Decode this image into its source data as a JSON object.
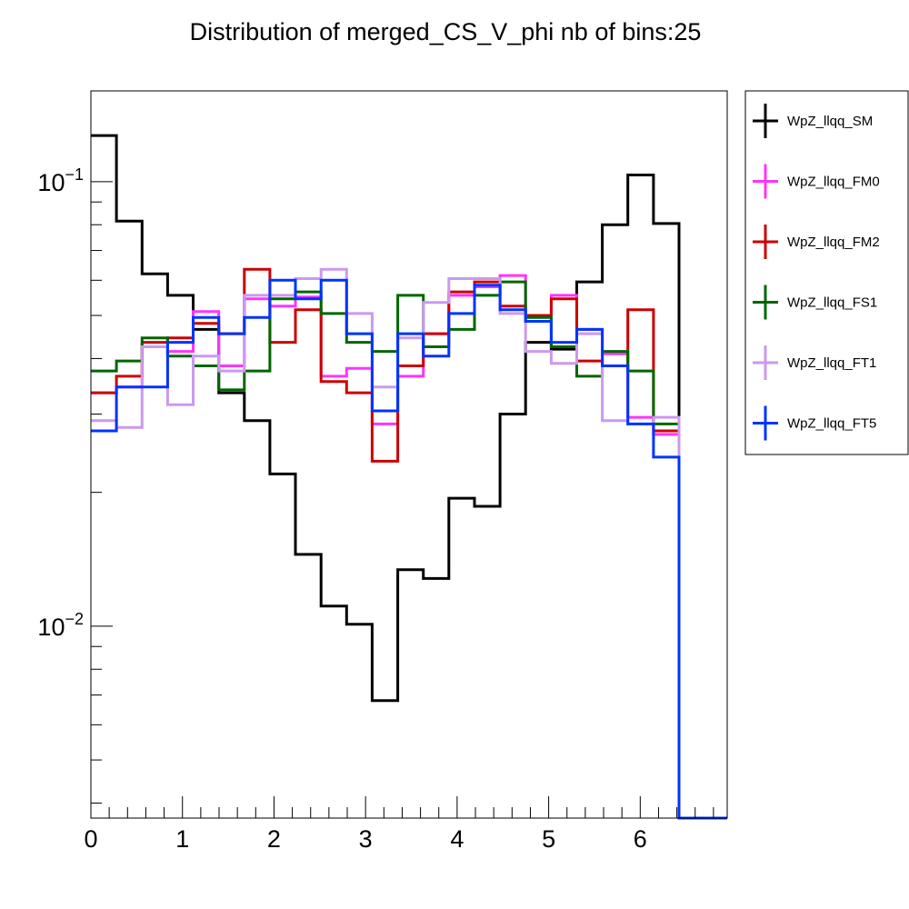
{
  "chart_data": {
    "type": "line",
    "title": "Distribution of merged_CS_V_phi nb of bins:25",
    "xlabel": "",
    "ylabel": "",
    "xlim": [
      0,
      6.95
    ],
    "ylim": [
      0.0037,
      0.16
    ],
    "yscale": "log",
    "grid": false,
    "legend_position": "right",
    "bin_edges": [
      0,
      0.2793,
      0.5586,
      0.8379,
      1.1172,
      1.3965,
      1.6758,
      1.9551,
      2.2344,
      2.5137,
      2.793,
      3.0723,
      3.3516,
      3.6309,
      3.9102,
      4.1895,
      4.4688,
      4.7481,
      5.0274,
      5.3067,
      5.586,
      5.8653,
      6.1446,
      6.4239,
      6.7032,
      6.95
    ],
    "x_ticks": [
      {
        "value": 0,
        "label": "0"
      },
      {
        "value": 1,
        "label": "1"
      },
      {
        "value": 2,
        "label": "2"
      },
      {
        "value": 3,
        "label": "3"
      },
      {
        "value": 4,
        "label": "4"
      },
      {
        "value": 5,
        "label": "5"
      },
      {
        "value": 6,
        "label": "6"
      }
    ],
    "y_ticks": [
      {
        "value": 0.1,
        "base": "10",
        "exponent": "−1"
      },
      {
        "value": 0.01,
        "base": "10",
        "exponent": "−2"
      }
    ],
    "series": [
      {
        "name": "WpZ_llqq_SM",
        "color": "#000000",
        "values": [
          0.127,
          0.0815,
          0.062,
          0.0555,
          0.0465,
          0.0335,
          0.029,
          0.022,
          0.0145,
          0.0111,
          0.0101,
          0.0068,
          0.0134,
          0.0128,
          0.0194,
          0.0186,
          0.03,
          0.0435,
          0.042,
          0.0595,
          0.08,
          0.1035,
          0.0805,
          0.0037,
          0.0037
        ]
      },
      {
        "name": "WpZ_llqq_FM0",
        "color": "#ff33ff",
        "values": [
          0.0335,
          0.0345,
          0.0425,
          0.0415,
          0.051,
          0.0385,
          0.0545,
          0.0525,
          0.055,
          0.0365,
          0.038,
          0.0285,
          0.0365,
          0.0455,
          0.0555,
          0.058,
          0.0615,
          0.0485,
          0.0555,
          0.0465,
          0.041,
          0.0295,
          0.027,
          0.0037,
          0.0037
        ]
      },
      {
        "name": "WpZ_llqq_FM2",
        "color": "#cc0000",
        "values": [
          0.0335,
          0.0365,
          0.0435,
          0.0445,
          0.048,
          0.0455,
          0.0635,
          0.0435,
          0.0515,
          0.0355,
          0.0335,
          0.0235,
          0.0385,
          0.0455,
          0.0565,
          0.0595,
          0.0525,
          0.05,
          0.0545,
          0.0395,
          0.0385,
          0.0515,
          0.0275,
          0.0037,
          0.0037
        ]
      },
      {
        "name": "WpZ_llqq_FS1",
        "color": "#006600",
        "values": [
          0.0375,
          0.0395,
          0.0445,
          0.0405,
          0.0385,
          0.034,
          0.0375,
          0.0545,
          0.0565,
          0.0505,
          0.0435,
          0.0415,
          0.0555,
          0.0425,
          0.0465,
          0.0555,
          0.0595,
          0.0495,
          0.0425,
          0.0365,
          0.0415,
          0.0375,
          0.0285,
          0.0037,
          0.0037
        ]
      },
      {
        "name": "WpZ_llqq_FT1",
        "color": "#cc99ee",
        "values": [
          0.029,
          0.028,
          0.0425,
          0.0315,
          0.0405,
          0.0375,
          0.0555,
          0.0555,
          0.0605,
          0.0635,
          0.0505,
          0.0345,
          0.0445,
          0.0535,
          0.0605,
          0.0605,
          0.0505,
          0.0415,
          0.039,
          0.0455,
          0.029,
          0.0285,
          0.0295,
          0.0037,
          0.0037
        ]
      },
      {
        "name": "WpZ_llqq_FT5",
        "color": "#0033ff",
        "values": [
          0.0275,
          0.0345,
          0.0345,
          0.0435,
          0.0495,
          0.0455,
          0.0495,
          0.06,
          0.0545,
          0.06,
          0.0455,
          0.0305,
          0.0455,
          0.0405,
          0.0505,
          0.0585,
          0.0515,
          0.0485,
          0.0435,
          0.0465,
          0.0385,
          0.0285,
          0.024,
          0.0037,
          0.0037
        ]
      }
    ]
  }
}
